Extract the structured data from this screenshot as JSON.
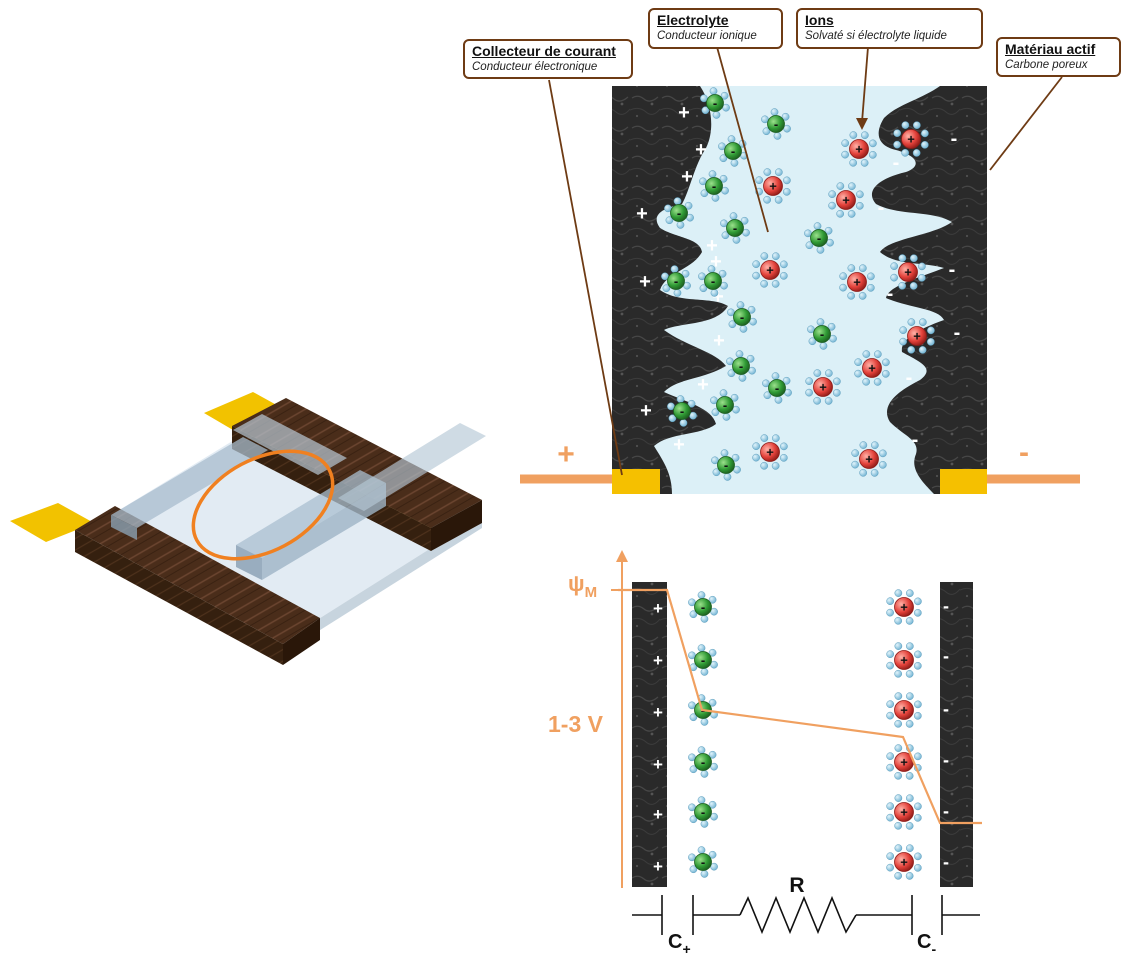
{
  "callouts": {
    "collector": {
      "title": "Collecteur de courant",
      "subtitle": "Conducteur électronique"
    },
    "electrolyte": {
      "title": "Electrolyte",
      "subtitle": "Conducteur ionique"
    },
    "ions": {
      "title": "Ions",
      "subtitle": "Solvaté si électrolyte liquide"
    },
    "active": {
      "title": "Matériau actif",
      "subtitle": "Carbone poreux"
    }
  },
  "terminals": {
    "plus": "+",
    "minus": "-"
  },
  "ion_signs": {
    "anion": "-",
    "cation": "+"
  },
  "potential": {
    "psi": "ψ",
    "psi_sub": "M",
    "voltage": "1-3 V"
  },
  "circuit": {
    "resistor": "R",
    "cap_left": "C",
    "cap_left_sub": "+",
    "cap_right": "C",
    "cap_right_sub": "-"
  },
  "colors": {
    "callout_border": "#6e3b14",
    "orange": "#f0a060",
    "gold": "#f5c000",
    "electrolyte": "#dcf0f7",
    "carbon": "#2b2b2b",
    "anion": "#3a9a3a",
    "cation": "#e03a3a",
    "solvent": "#8cc6e0"
  }
}
